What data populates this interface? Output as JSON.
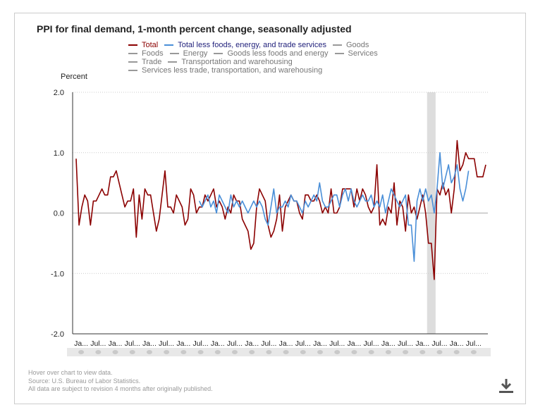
{
  "title": "PPI for final demand, 1-month percent change, seasonally adjusted",
  "legend": [
    [
      {
        "label": "Total",
        "color": "#8b0000",
        "text_color": "#8b0000"
      },
      {
        "label": "Total less foods, energy, and trade services",
        "color": "#4a8fd8",
        "text_color": "#1f1f7a"
      },
      {
        "label": "Goods",
        "color": "#999999",
        "text_color": "#777777"
      }
    ],
    [
      {
        "label": "Foods",
        "color": "#999999",
        "text_color": "#777777"
      },
      {
        "label": "Energy",
        "color": "#999999",
        "text_color": "#777777"
      },
      {
        "label": "Goods less foods and energy",
        "color": "#999999",
        "text_color": "#777777"
      },
      {
        "label": "Services",
        "color": "#999999",
        "text_color": "#777777"
      }
    ],
    [
      {
        "label": "Trade",
        "color": "#999999",
        "text_color": "#777777"
      },
      {
        "label": "Transportation and warehousing",
        "color": "#999999",
        "text_color": "#777777"
      }
    ],
    [
      {
        "label": "Services less trade, transportation, and warehousing",
        "color": "#999999",
        "text_color": "#777777"
      }
    ]
  ],
  "footer": {
    "hover": "Hover over chart to view data.",
    "source": "Source: U.S. Bureau of Labor Statistics.",
    "revision": "All data are subject to revision 4 months after originally published."
  },
  "chart_data": {
    "type": "line",
    "ylabel": "Percent",
    "ylim": [
      -2.0,
      2.0
    ],
    "y_ticks": [
      "2.0",
      "1.0",
      "0.0",
      "-1.0",
      "-2.0"
    ],
    "y_tick_values": [
      2.0,
      1.0,
      0.0,
      -1.0,
      -2.0
    ],
    "grid": true,
    "x_tick_labels": [
      "Ja...",
      "Jul...",
      "Ja...",
      "Jul...",
      "Ja...",
      "Jul...",
      "Ja...",
      "Jul...",
      "Ja...",
      "Jul...",
      "Ja...",
      "Jul...",
      "Ja...",
      "Jul...",
      "Ja...",
      "Jul...",
      "Ja...",
      "Jul...",
      "Ja...",
      "Jul...",
      "Ja...",
      "Jul...",
      "Ja...",
      "Jul..."
    ],
    "recession_shading": {
      "start_index": 123,
      "end_index": 125
    },
    "series": [
      {
        "name": "Total",
        "color": "#8b0000",
        "start_index": 0,
        "values": [
          0.9,
          -0.2,
          0.1,
          0.3,
          0.2,
          -0.2,
          0.2,
          0.2,
          0.3,
          0.4,
          0.3,
          0.3,
          0.6,
          0.6,
          0.7,
          0.5,
          0.3,
          0.1,
          0.2,
          0.2,
          0.4,
          -0.4,
          0.3,
          -0.1,
          0.4,
          0.3,
          0.3,
          0.0,
          -0.3,
          -0.1,
          0.3,
          0.7,
          0.1,
          0.1,
          0.0,
          0.3,
          0.2,
          0.1,
          -0.2,
          -0.1,
          0.4,
          0.3,
          0.0,
          0.1,
          0.1,
          0.3,
          0.2,
          0.3,
          0.4,
          0.1,
          0.2,
          0.1,
          -0.1,
          0.1,
          0.0,
          0.3,
          0.2,
          0.2,
          -0.1,
          -0.2,
          -0.3,
          -0.6,
          -0.5,
          0.1,
          0.4,
          0.3,
          0.2,
          -0.2,
          -0.4,
          -0.3,
          -0.1,
          0.3,
          -0.3,
          0.1,
          0.2,
          0.3,
          0.2,
          0.2,
          0.0,
          -0.1,
          0.3,
          0.3,
          0.2,
          0.2,
          0.3,
          0.2,
          0.0,
          0.1,
          0.0,
          0.4,
          0.0,
          0.0,
          0.1,
          0.4,
          0.4,
          0.4,
          0.4,
          0.1,
          0.4,
          0.2,
          0.4,
          0.3,
          0.1,
          0.0,
          0.1,
          0.8,
          -0.2,
          -0.1,
          -0.2,
          0.1,
          0.0,
          0.5,
          -0.2,
          0.2,
          0.1,
          -0.3,
          0.3,
          0.0,
          0.1,
          -0.1,
          0.1,
          0.3,
          0.0,
          -0.5,
          -0.5,
          -1.1,
          0.4,
          0.3,
          0.5,
          0.3,
          0.4,
          0.0,
          0.4,
          1.2,
          0.7,
          0.8,
          1.0,
          0.9,
          0.9,
          0.9,
          0.6,
          0.6,
          0.6,
          0.8
        ]
      },
      {
        "name": "Total less foods, energy, and trade services",
        "color": "#4a8fd8",
        "start_index": 43,
        "values": [
          0.2,
          0.1,
          0.2,
          0.3,
          0.1,
          0.2,
          0.0,
          0.3,
          0.2,
          0.1,
          0.0,
          0.3,
          0.1,
          0.2,
          0.1,
          0.2,
          0.1,
          0.0,
          0.1,
          0.2,
          0.1,
          0.2,
          0.1,
          -0.1,
          -0.2,
          0.1,
          0.4,
          0.0,
          0.1,
          0.1,
          0.2,
          0.1,
          0.3,
          0.2,
          0.2,
          0.1,
          0.0,
          0.2,
          0.1,
          0.2,
          0.3,
          0.2,
          0.5,
          0.2,
          0.1,
          0.1,
          0.2,
          0.3,
          0.3,
          0.1,
          0.3,
          0.4,
          0.2,
          0.4,
          0.2,
          0.1,
          0.2,
          0.3,
          0.2,
          0.2,
          0.3,
          0.1,
          0.2,
          0.1,
          0.3,
          0.0,
          0.2,
          0.4,
          0.3,
          0.2,
          0.1,
          0.2,
          0.3,
          -0.2,
          -0.2,
          -0.8,
          0.2,
          0.4,
          0.2,
          0.4,
          0.2,
          0.3,
          0.0,
          0.4,
          1.0,
          0.4,
          0.6,
          0.8,
          0.5,
          0.6,
          0.8,
          0.4,
          0.2,
          0.4,
          0.7
        ]
      }
    ]
  }
}
